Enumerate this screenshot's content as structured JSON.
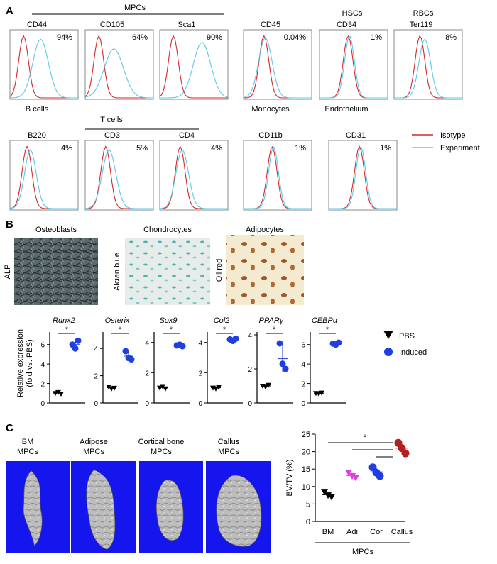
{
  "colors": {
    "isotype": "#d62728",
    "experiment": "#5bc8e8",
    "pbs": "#000000",
    "induced": "#1f3fe0",
    "bm": "#000000",
    "adi": "#e040e0",
    "cor": "#1f3fe0",
    "callus": "#b22020"
  },
  "panelA": {
    "letter": "A",
    "groups": {
      "mpcs": "MPCs",
      "hscs": "HSCs",
      "rbcs": "RBCs",
      "tcells": "T cells"
    },
    "row1": [
      {
        "marker": "CD44",
        "pct": "94%",
        "below": "B cells"
      },
      {
        "marker": "CD105",
        "pct": "64%",
        "below": ""
      },
      {
        "marker": "Sca1",
        "pct": "90%",
        "below": ""
      },
      {
        "marker": "CD45",
        "pct": "0.04%",
        "below": "Monocytes"
      },
      {
        "marker": "CD34",
        "pct": "1%",
        "below": "Endothelium"
      },
      {
        "marker": "Ter119",
        "pct": "8%",
        "below": ""
      }
    ],
    "row2": [
      {
        "marker": "B220",
        "pct": "4%"
      },
      {
        "marker": "CD3",
        "pct": "5%"
      },
      {
        "marker": "CD4",
        "pct": "4%"
      },
      {
        "marker": "CD11b",
        "pct": "1%"
      },
      {
        "marker": "CD31",
        "pct": "1%"
      }
    ],
    "legend": {
      "isotype": "Isotype",
      "experiment": "Experiment"
    }
  },
  "panelB": {
    "letter": "B",
    "images": [
      {
        "title": "Osteoblasts",
        "stain": "ALP"
      },
      {
        "title": "Chondrocytes",
        "stain": "Alcian blue"
      },
      {
        "title": "Adipocytes",
        "stain": "Oil red"
      }
    ],
    "ylabel_line1": "Relative expression",
    "ylabel_line2": "(fold vs. PBS)",
    "legend": {
      "pbs": "PBS",
      "induced": "Induced"
    },
    "sig": "*"
  },
  "panelC": {
    "letter": "C",
    "images": [
      {
        "line1": "BM",
        "line2": "MPCs"
      },
      {
        "line1": "Adipose",
        "line2": "MPCs"
      },
      {
        "line1": "Cortical bone",
        "line2": "MPCs"
      },
      {
        "line1": "Callus",
        "line2": "MPCs"
      }
    ],
    "sig": "*"
  },
  "chart_data": [
    {
      "type": "scatter",
      "title": "Runx2",
      "yticks": [
        0,
        2,
        4,
        6
      ],
      "ylim": [
        0,
        7
      ],
      "series": [
        {
          "name": "PBS",
          "values": [
            1.0,
            1.1,
            0.95
          ]
        },
        {
          "name": "Induced",
          "values": [
            6.0,
            5.6,
            6.4
          ]
        }
      ]
    },
    {
      "type": "scatter",
      "title": "Osterix",
      "yticks": [
        0,
        2,
        4
      ],
      "ylim": [
        0,
        5
      ],
      "series": [
        {
          "name": "PBS",
          "values": [
            1.2,
            1.05,
            1.1
          ]
        },
        {
          "name": "Induced",
          "values": [
            3.8,
            3.3,
            3.2
          ]
        }
      ]
    },
    {
      "type": "scatter",
      "title": "Sox9",
      "yticks": [
        0,
        2,
        4
      ],
      "ylim": [
        0,
        4.5
      ],
      "series": [
        {
          "name": "PBS",
          "values": [
            1.0,
            1.1,
            0.95
          ]
        },
        {
          "name": "Induced",
          "values": [
            3.8,
            3.85,
            3.75
          ]
        }
      ]
    },
    {
      "type": "scatter",
      "title": "Col2",
      "yticks": [
        0,
        2,
        4
      ],
      "ylim": [
        0,
        4.5
      ],
      "series": [
        {
          "name": "PBS",
          "values": [
            1.0,
            0.95,
            1.05
          ]
        },
        {
          "name": "Induced",
          "values": [
            4.2,
            4.1,
            4.25
          ]
        }
      ]
    },
    {
      "type": "scatter",
      "title": "PPARγ",
      "yticks": [
        0,
        2,
        4
      ],
      "ylim": [
        0,
        4
      ],
      "series": [
        {
          "name": "PBS",
          "values": [
            1.0,
            0.95,
            1.05
          ]
        },
        {
          "name": "Induced",
          "values": [
            3.5,
            2.3,
            2.0
          ]
        }
      ]
    },
    {
      "type": "scatter",
      "title": "CEBPα",
      "yticks": [
        0,
        2,
        4,
        6
      ],
      "ylim": [
        0,
        7
      ],
      "series": [
        {
          "name": "PBS",
          "values": [
            1.0,
            0.95,
            1.05
          ]
        },
        {
          "name": "Induced",
          "values": [
            6.1,
            6.0,
            6.2
          ]
        }
      ]
    },
    {
      "type": "scatter",
      "ylabel": "BV/TV (%)",
      "yticks": [
        0,
        5,
        10,
        15,
        20,
        25
      ],
      "ylim": [
        0,
        25
      ],
      "categories": [
        "BM",
        "Adi",
        "Cor",
        "Callus"
      ],
      "xgroup": "MPCs",
      "series": [
        {
          "name": "BM",
          "values": [
            8.5,
            7.5,
            7.0
          ]
        },
        {
          "name": "Adi",
          "values": [
            14.0,
            13.0,
            12.5
          ]
        },
        {
          "name": "Cor",
          "values": [
            15.5,
            14.0,
            13.0
          ]
        },
        {
          "name": "Callus",
          "values": [
            22.5,
            21.0,
            19.5
          ]
        }
      ]
    }
  ]
}
